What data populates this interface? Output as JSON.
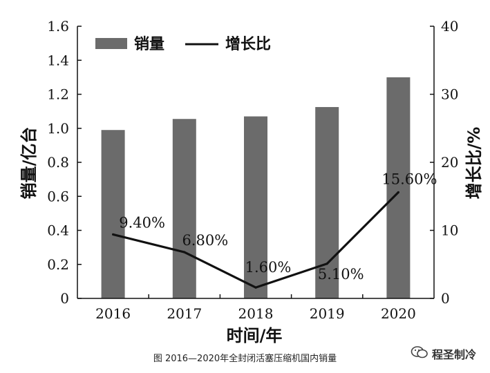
{
  "chart_data": {
    "type": "bar",
    "categories": [
      "2016",
      "2017",
      "2018",
      "2019",
      "2020"
    ],
    "series": [
      {
        "name": "销量",
        "type": "bar",
        "axis": "left",
        "values": [
          0.99,
          1.055,
          1.07,
          1.125,
          1.3
        ]
      },
      {
        "name": "增长比",
        "type": "line",
        "axis": "right",
        "values": [
          9.4,
          6.8,
          1.6,
          5.1,
          15.6
        ],
        "labels": [
          "9.40%",
          "6.80%",
          "1.60%",
          "5.10%",
          "15.60%"
        ]
      }
    ],
    "xlabel": "时间/年",
    "ylabel": "销量/亿台",
    "y2label": "增长比/%",
    "ylim": [
      0,
      1.6
    ],
    "y2lim": [
      0,
      40
    ],
    "yticks": [
      "0",
      "0.2",
      "0.4",
      "0.6",
      "0.8",
      "1.0",
      "1.2",
      "1.4",
      "1.6"
    ],
    "y2ticks": [
      "0",
      "10",
      "20",
      "30",
      "40"
    ],
    "legend_position": "top-left",
    "grid": false,
    "bar_color": "#6b6b6b",
    "line_color": "#111111"
  },
  "caption": "图 2016—2020年全封闭活塞压缩机国内销量",
  "watermark": {
    "text": "程圣制冷",
    "icon": "wechat-icon"
  }
}
